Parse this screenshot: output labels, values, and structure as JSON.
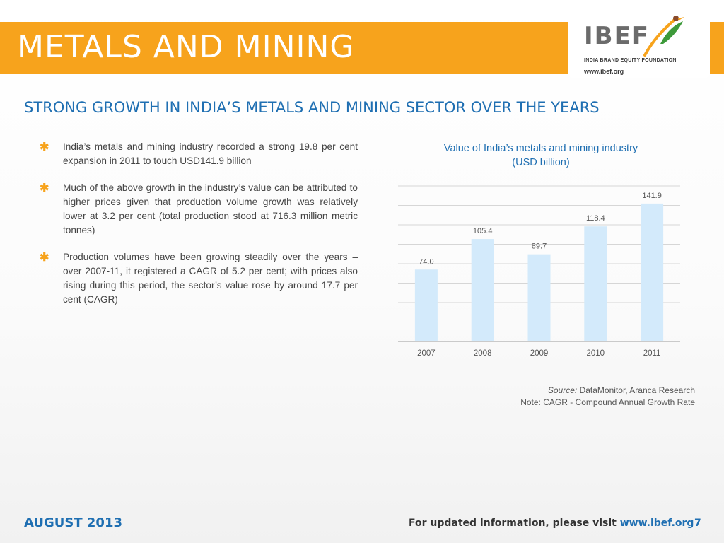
{
  "header": {
    "title": "METALS AND MINING",
    "logo_text": "IBEF",
    "logo_subtitle": "INDIA BRAND EQUITY FOUNDATION",
    "logo_url": "www.ibef.org"
  },
  "subtitle": "STRONG GROWTH IN INDIA’S METALS AND MINING SECTOR OVER THE YEARS",
  "bullets": [
    "India’s metals and mining industry recorded a strong 19.8 per cent expansion in 2011 to touch USD141.9 billion",
    "Much of the above growth in the industry’s value can be attributed to higher prices given that production volume growth was relatively lower at 3.2 per cent (total production stood at 716.3 million metric tonnes)",
    "Production volumes have been growing steadily over the years – over 2007-11, it registered a CAGR of 5.2 per cent; with prices also rising during this period, the sector’s value rose by around 17.7 per cent (CAGR)"
  ],
  "chart_data": {
    "type": "bar",
    "title": "Value of India’s metals and mining industry",
    "subtitle": "(USD billion)",
    "categories": [
      "2007",
      "2008",
      "2009",
      "2010",
      "2011"
    ],
    "values": [
      74.0,
      105.4,
      89.7,
      118.4,
      141.9
    ],
    "value_labels": [
      "74.0",
      "105.4",
      "89.7",
      "118.4",
      "141.9"
    ],
    "ylim": [
      0,
      160
    ],
    "grid": true,
    "bar_color": "#D3EAFB"
  },
  "source": {
    "label": "Source:",
    "text": "DataMonitor, Aranca Research",
    "note": "Note: CAGR - Compound Annual Growth Rate"
  },
  "footer": {
    "date": "AUGUST 2013",
    "info_text": "For updated information, please visit",
    "info_link": "www.ibef.org",
    "page_number": "7"
  },
  "colors": {
    "accent_orange": "#F7A31C",
    "accent_blue": "#1F6FB2"
  }
}
